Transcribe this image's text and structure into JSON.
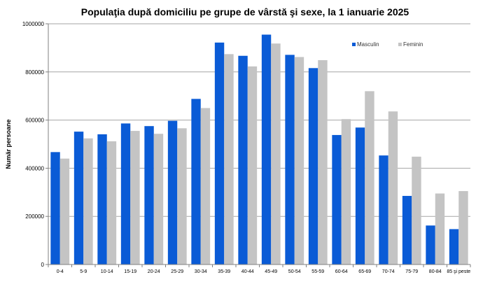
{
  "chart_data": {
    "type": "bar",
    "title": "Populaţia după domiciliu pe grupe de vârstă şi sexe, la 1 ianuarie 2025",
    "ylabel": "Număr persoane",
    "xlabel": "",
    "ylim": [
      0,
      1000000
    ],
    "yticks": [
      0,
      200000,
      400000,
      600000,
      800000,
      1000000
    ],
    "ytick_labels": [
      "0",
      "200000",
      "400000",
      "600000",
      "800000",
      "1000000"
    ],
    "grid": true,
    "legend_position": "top-right",
    "categories": [
      "0-4",
      "5-9",
      "10-14",
      "15-19",
      "20-24",
      "25-29",
      "30-34",
      "35-39",
      "40-44",
      "45-49",
      "50-54",
      "55-59",
      "60-64",
      "65-69",
      "70-74",
      "75-79",
      "80-84",
      "85 şi peste"
    ],
    "series": [
      {
        "name": "Masculin",
        "color": "#0a5bd6",
        "values": [
          467000,
          552000,
          541000,
          586000,
          575000,
          597000,
          688000,
          922000,
          867000,
          955000,
          871000,
          816000,
          538000,
          569000,
          453000,
          285000,
          162000,
          147000
        ]
      },
      {
        "name": "Feminin",
        "color": "#c4c4c4",
        "values": [
          440000,
          524000,
          512000,
          555000,
          543000,
          566000,
          650000,
          874000,
          823000,
          918000,
          862000,
          849000,
          604000,
          720000,
          636000,
          448000,
          295000,
          305000
        ]
      }
    ]
  }
}
